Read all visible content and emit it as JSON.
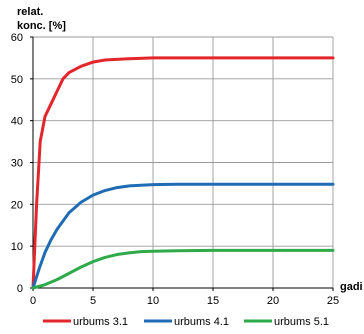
{
  "chart_data": {
    "type": "line",
    "ylabel_lines": [
      "relat.",
      "konc. [%]"
    ],
    "xlabel": "gadi",
    "xlim": [
      0,
      25
    ],
    "ylim": [
      0,
      60
    ],
    "x_ticks": [
      0,
      5,
      10,
      15,
      20,
      25
    ],
    "y_ticks": [
      0,
      10,
      20,
      30,
      40,
      50,
      60
    ],
    "grid": true,
    "legend_position": "bottom",
    "series": [
      {
        "name": "urbums 3.1",
        "color": "#e3262b",
        "x": [
          0,
          0.3,
          0.6,
          1,
          1.5,
          2,
          2.5,
          3,
          4,
          5,
          6,
          8,
          10,
          12,
          15,
          20,
          25
        ],
        "y": [
          0,
          20,
          35,
          41,
          44,
          47,
          50,
          51.5,
          53,
          54,
          54.5,
          54.8,
          55,
          55,
          55,
          55,
          55
        ]
      },
      {
        "name": "urbums 4.1",
        "color": "#1f6cb5",
        "x": [
          0,
          0.5,
          1,
          1.5,
          2,
          3,
          4,
          5,
          6,
          7,
          8,
          10,
          12,
          15,
          20,
          25
        ],
        "y": [
          0,
          4.5,
          8.5,
          11.5,
          14,
          18,
          20.5,
          22.2,
          23.3,
          24,
          24.4,
          24.7,
          24.8,
          24.8,
          24.8,
          24.8
        ]
      },
      {
        "name": "urbums 5.1",
        "color": "#2eaa4a",
        "x": [
          0,
          1,
          2,
          3,
          4,
          5,
          6,
          7,
          8,
          9,
          10,
          12,
          15,
          20,
          25
        ],
        "y": [
          0,
          0.8,
          2,
          3.5,
          5,
          6.3,
          7.3,
          8,
          8.4,
          8.7,
          8.8,
          8.9,
          9,
          9,
          9
        ]
      }
    ]
  }
}
